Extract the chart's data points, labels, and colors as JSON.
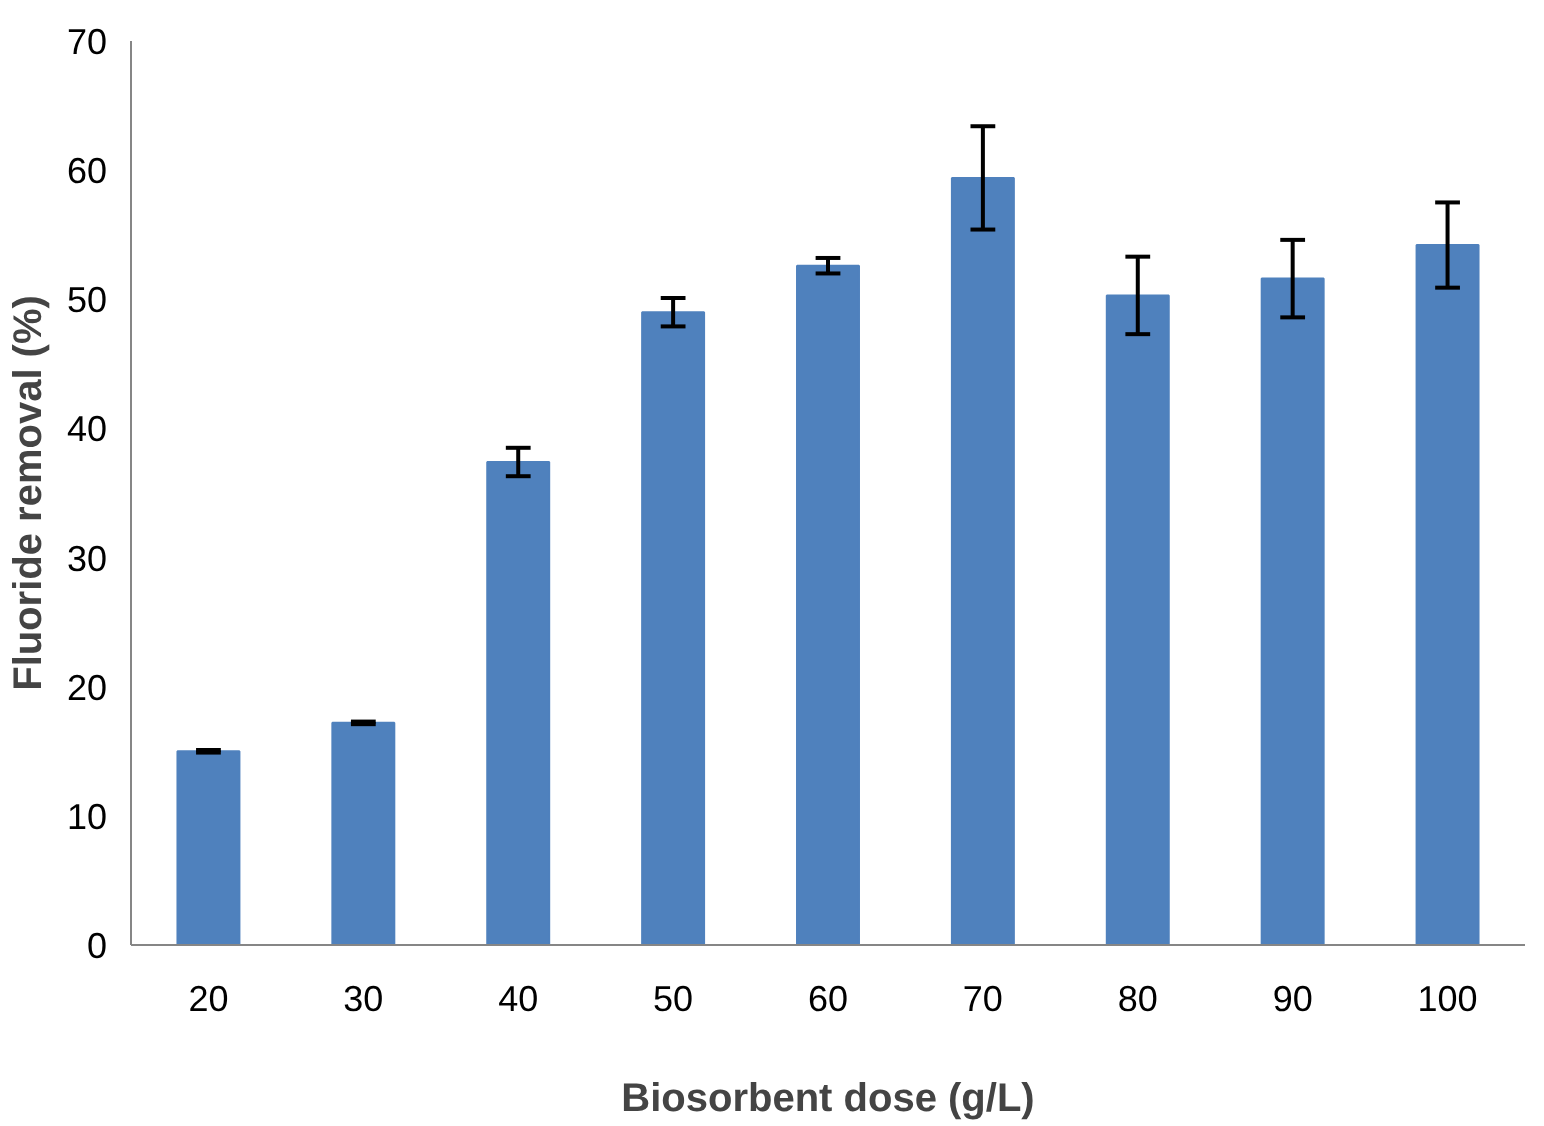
{
  "chart_data": {
    "type": "bar",
    "xlabel": "Biosorbent dose (g/L)",
    "ylabel": "Fluoride removal (%)",
    "categories": [
      "20",
      "30",
      "40",
      "50",
      "60",
      "70",
      "80",
      "90",
      "100"
    ],
    "values": [
      15.0,
      17.2,
      37.4,
      49.0,
      52.6,
      59.4,
      50.3,
      51.6,
      54.2
    ],
    "errors": [
      0.1,
      0.1,
      1.1,
      1.1,
      0.6,
      4.0,
      3.0,
      3.0,
      3.3
    ],
    "color": "#4f81bd",
    "ylim": [
      0,
      70
    ],
    "yticks": [
      0,
      10,
      20,
      30,
      40,
      50,
      60,
      70
    ],
    "grid": false
  }
}
